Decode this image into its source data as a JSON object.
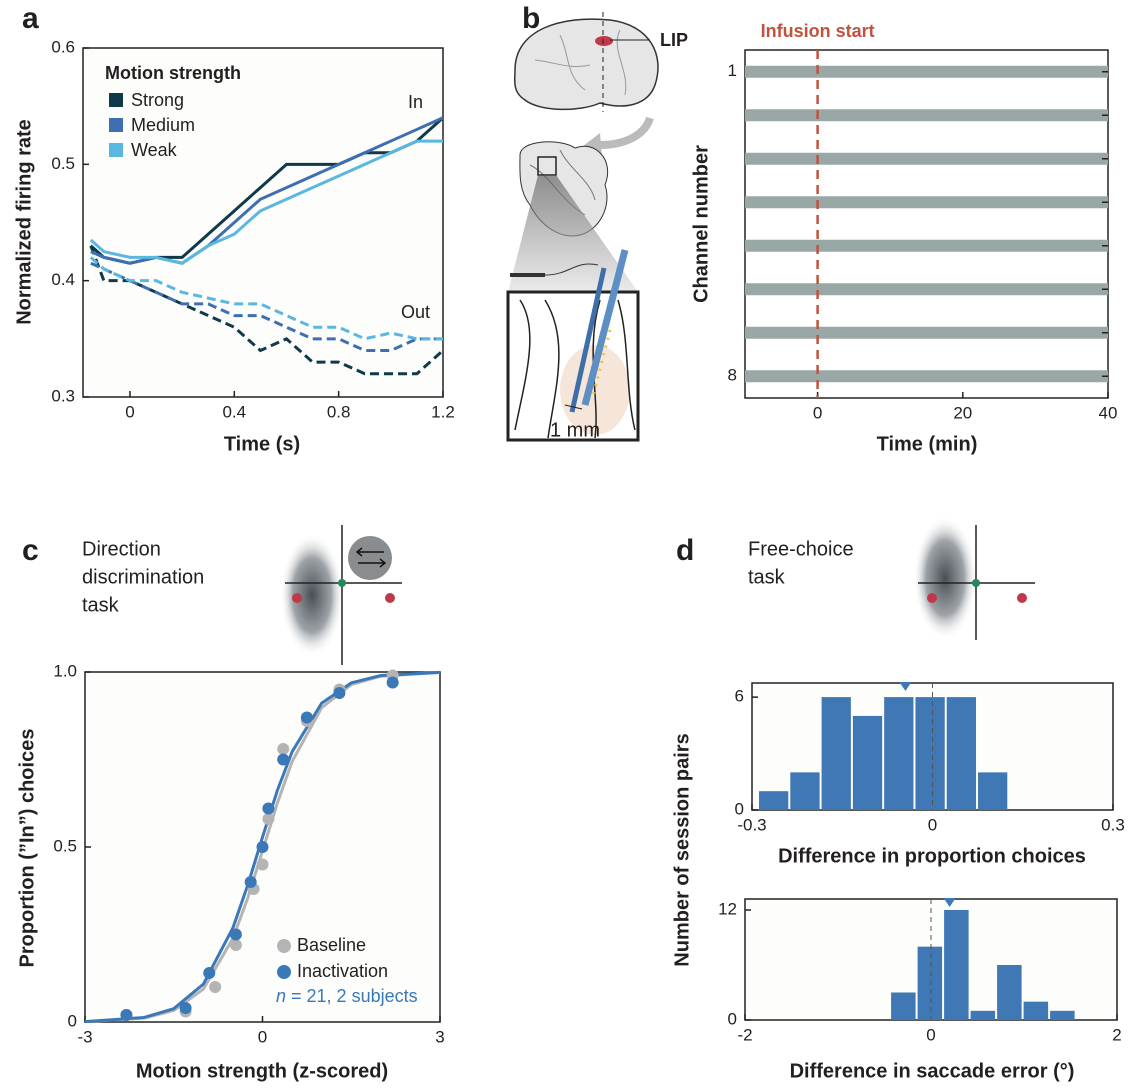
{
  "chart_data": [
    {
      "type": "line",
      "panel": "a",
      "xlabel": "Time (s)",
      "ylabel": "Normalized firing rate",
      "legend_title": "Motion strength",
      "in_label": "In",
      "out_label": "Out",
      "x": [
        -0.15,
        -0.1,
        0,
        0.1,
        0.2,
        0.3,
        0.4,
        0.5,
        0.6,
        0.7,
        0.8,
        0.9,
        1.0,
        1.1,
        1.2
      ],
      "series": [
        {
          "name": "Strong",
          "color": "#0f3a4a",
          "in": [
            0.43,
            0.42,
            0.415,
            0.42,
            0.42,
            0.44,
            0.46,
            0.48,
            0.5,
            0.5,
            0.5,
            0.51,
            0.51,
            0.52,
            0.54
          ],
          "out": [
            0.43,
            0.4,
            0.4,
            0.39,
            0.38,
            0.37,
            0.36,
            0.34,
            0.35,
            0.33,
            0.33,
            0.32,
            0.32,
            0.32,
            0.34
          ]
        },
        {
          "name": "Medium",
          "color": "#3f6fb0",
          "in": [
            0.425,
            0.42,
            0.415,
            0.42,
            0.415,
            0.43,
            0.45,
            0.47,
            0.48,
            0.49,
            0.5,
            0.51,
            0.52,
            0.53,
            0.54
          ],
          "out": [
            0.415,
            0.41,
            0.4,
            0.39,
            0.38,
            0.38,
            0.37,
            0.37,
            0.36,
            0.35,
            0.35,
            0.34,
            0.34,
            0.35,
            0.35
          ]
        },
        {
          "name": "Weak",
          "color": "#5ab7e0",
          "in": [
            0.435,
            0.425,
            0.42,
            0.42,
            0.415,
            0.43,
            0.44,
            0.46,
            0.47,
            0.48,
            0.49,
            0.5,
            0.51,
            0.52,
            0.52
          ],
          "out": [
            0.42,
            0.41,
            0.4,
            0.4,
            0.39,
            0.385,
            0.38,
            0.38,
            0.37,
            0.36,
            0.36,
            0.35,
            0.355,
            0.35,
            0.35
          ]
        }
      ],
      "xlim": [
        -0.18,
        1.2
      ],
      "ylim": [
        0.3,
        0.6
      ],
      "xticks": [
        0,
        0.4,
        0.8,
        1.2
      ],
      "yticks": [
        0.3,
        0.4,
        0.5,
        0.6
      ]
    },
    {
      "type": "traces",
      "panel": "b",
      "xlabel": "Time (min)",
      "ylabel": "Channel  number",
      "channels": [
        1,
        2,
        3,
        4,
        5,
        6,
        7,
        8
      ],
      "invert_y": true,
      "trace_color": "#9aa7a7",
      "infusion_start": {
        "label": "Infusion start",
        "x": 0,
        "color": "#c0523e"
      },
      "xlim": [
        -10,
        40
      ],
      "ylim": [
        0.5,
        8.5
      ],
      "xticks": [
        0,
        20,
        40
      ],
      "yticks": [
        1,
        8
      ]
    },
    {
      "type": "scatter",
      "panel": "c",
      "xlabel": "Motion strength (z-scored)",
      "ylabel": "Proportion (”In”) choices",
      "note": [
        "n",
        " = 21, 2 subjects"
      ],
      "note_color": "#3a78b8",
      "fit_x": [
        -3,
        -2,
        -1.5,
        -1,
        -0.5,
        -0.25,
        0,
        0.25,
        0.5,
        1,
        1.5,
        2,
        3
      ],
      "series": [
        {
          "name": "Baseline",
          "color": "#b4b4b4",
          "x": [
            -2.3,
            -1.3,
            -0.8,
            -0.45,
            -0.15,
            0,
            0.1,
            0.35,
            0.75,
            1.3,
            2.2
          ],
          "values": [
            0.02,
            0.03,
            0.1,
            0.22,
            0.38,
            0.45,
            0.58,
            0.78,
            0.86,
            0.95,
            0.99
          ],
          "fit": [
            0.001,
            0.011,
            0.033,
            0.094,
            0.239,
            0.354,
            0.489,
            0.625,
            0.744,
            0.898,
            0.964,
            0.988,
            0.999
          ]
        },
        {
          "name": "Inactivation",
          "color": "#3a78b8",
          "x": [
            -2.3,
            -1.3,
            -0.9,
            -0.45,
            -0.2,
            0,
            0.1,
            0.35,
            0.75,
            1.3,
            2.2
          ],
          "values": [
            0.02,
            0.04,
            0.14,
            0.25,
            0.4,
            0.5,
            0.61,
            0.75,
            0.87,
            0.94,
            0.97
          ],
          "fit": [
            0.001,
            0.013,
            0.038,
            0.108,
            0.269,
            0.391,
            0.528,
            0.661,
            0.772,
            0.911,
            0.969,
            0.99,
            0.999
          ]
        }
      ],
      "xlim": [
        -3,
        3
      ],
      "ylim": [
        0,
        1
      ],
      "xticks": [
        -3,
        0,
        3
      ],
      "yticks": [
        0,
        0.5,
        {
          "value": 1,
          "label": "1.0"
        }
      ]
    },
    {
      "type": "histogram",
      "panel": "d",
      "xlabel": "Difference in proportion choices",
      "ylabel": "Number of session pairs",
      "color": "#3f78b5",
      "bins": [
        -0.29,
        -0.238,
        -0.186,
        -0.134,
        -0.082,
        -0.03,
        0.022,
        0.074,
        0.126
      ],
      "values": [
        1,
        2,
        6,
        5,
        6,
        6,
        6,
        2
      ],
      "mean": -0.045,
      "reference_line": 0,
      "xlim": [
        -0.3,
        0.3
      ],
      "ylim": [
        0,
        6.75
      ],
      "xticks": [
        -0.3,
        0,
        0.3
      ],
      "yticks": [
        0,
        6
      ]
    },
    {
      "type": "histogram",
      "xlabel": "Difference in saccade error (°)",
      "color": "#3f78b5",
      "bins": [
        -0.44,
        -0.155,
        0.13,
        0.415,
        0.7,
        0.985,
        1.27,
        1.555
      ],
      "values": [
        3,
        8,
        12,
        1,
        6,
        2,
        1
      ],
      "mean": 0.2,
      "reference_line": 0,
      "xlim": [
        -2,
        2
      ],
      "ylim": [
        0,
        13.2
      ],
      "xticks": [
        -2,
        0,
        2
      ],
      "yticks": [
        0,
        12
      ]
    }
  ],
  "schematics": {
    "b": {
      "area": "LIP",
      "scale": "1 mm"
    },
    "c": {
      "lines": [
        "Direction",
        "discrimination",
        "task"
      ]
    },
    "d": {
      "lines": [
        "Free-choice",
        "task"
      ]
    }
  }
}
